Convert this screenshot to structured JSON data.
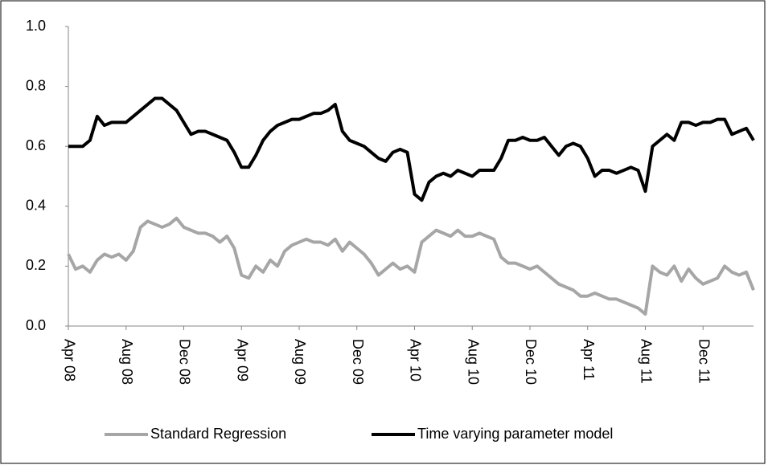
{
  "chart_data": {
    "type": "line",
    "categories": [
      "Apr 08",
      null,
      null,
      null,
      null,
      null,
      null,
      null,
      "Aug 08",
      null,
      null,
      null,
      null,
      null,
      null,
      null,
      "Dec 08",
      null,
      null,
      null,
      null,
      null,
      null,
      null,
      "Apr 09",
      null,
      null,
      null,
      null,
      null,
      null,
      null,
      "Aug 09",
      null,
      null,
      null,
      null,
      null,
      null,
      null,
      "Dec 09",
      null,
      null,
      null,
      null,
      null,
      null,
      null,
      "Apr 10",
      null,
      null,
      null,
      null,
      null,
      null,
      null,
      "Aug 10",
      null,
      null,
      null,
      null,
      null,
      null,
      null,
      "Dec 10",
      null,
      null,
      null,
      null,
      null,
      null,
      null,
      "Apr 11",
      null,
      null,
      null,
      null,
      null,
      null,
      null,
      "Aug 11",
      null,
      null,
      null,
      null,
      null,
      null,
      null,
      "Dec 11",
      null,
      null,
      null,
      null,
      null,
      null,
      null
    ],
    "series": [
      {
        "name": "Standard Regression",
        "color": "#a6a6a6",
        "values": [
          0.24,
          0.19,
          0.2,
          0.18,
          0.22,
          0.24,
          0.23,
          0.24,
          0.22,
          0.25,
          0.33,
          0.35,
          0.34,
          0.33,
          0.34,
          0.36,
          0.33,
          0.32,
          0.31,
          0.31,
          0.3,
          0.28,
          0.3,
          0.26,
          0.17,
          0.16,
          0.2,
          0.18,
          0.22,
          0.2,
          0.25,
          0.27,
          0.28,
          0.29,
          0.28,
          0.28,
          0.27,
          0.29,
          0.25,
          0.28,
          0.26,
          0.24,
          0.21,
          0.17,
          0.19,
          0.21,
          0.19,
          0.2,
          0.18,
          0.28,
          0.3,
          0.32,
          0.31,
          0.3,
          0.32,
          0.3,
          0.3,
          0.31,
          0.3,
          0.29,
          0.23,
          0.21,
          0.21,
          0.2,
          0.19,
          0.2,
          0.18,
          0.16,
          0.14,
          0.13,
          0.12,
          0.1,
          0.1,
          0.11,
          0.1,
          0.09,
          0.09,
          0.08,
          0.07,
          0.06,
          0.04,
          0.2,
          0.18,
          0.17,
          0.2,
          0.15,
          0.19,
          0.16,
          0.14,
          0.15,
          0.16,
          0.2,
          0.18,
          0.17,
          0.18,
          0.12
        ]
      },
      {
        "name": "Time varying parameter model",
        "color": "#000000",
        "values": [
          0.6,
          0.6,
          0.6,
          0.62,
          0.7,
          0.67,
          0.68,
          0.68,
          0.68,
          0.7,
          0.72,
          0.74,
          0.76,
          0.76,
          0.74,
          0.72,
          0.68,
          0.64,
          0.65,
          0.65,
          0.64,
          0.63,
          0.62,
          0.58,
          0.53,
          0.53,
          0.57,
          0.62,
          0.65,
          0.67,
          0.68,
          0.69,
          0.69,
          0.7,
          0.71,
          0.71,
          0.72,
          0.74,
          0.65,
          0.62,
          0.61,
          0.6,
          0.58,
          0.56,
          0.55,
          0.58,
          0.59,
          0.58,
          0.44,
          0.42,
          0.48,
          0.5,
          0.51,
          0.5,
          0.52,
          0.51,
          0.5,
          0.52,
          0.52,
          0.52,
          0.56,
          0.62,
          0.62,
          0.63,
          0.62,
          0.62,
          0.63,
          0.6,
          0.57,
          0.6,
          0.61,
          0.6,
          0.56,
          0.5,
          0.52,
          0.52,
          0.51,
          0.52,
          0.53,
          0.52,
          0.45,
          0.6,
          0.62,
          0.64,
          0.62,
          0.68,
          0.68,
          0.67,
          0.68,
          0.68,
          0.69,
          0.69,
          0.64,
          0.65,
          0.66,
          0.62
        ]
      }
    ],
    "ylim": [
      0,
      1
    ],
    "yticks": [
      {
        "value": 0,
        "label": "0.0"
      },
      0.2,
      0.4,
      0.6,
      0.8,
      {
        "value": 1,
        "label": "1.0"
      }
    ],
    "grid": false,
    "legend": "bottom"
  }
}
